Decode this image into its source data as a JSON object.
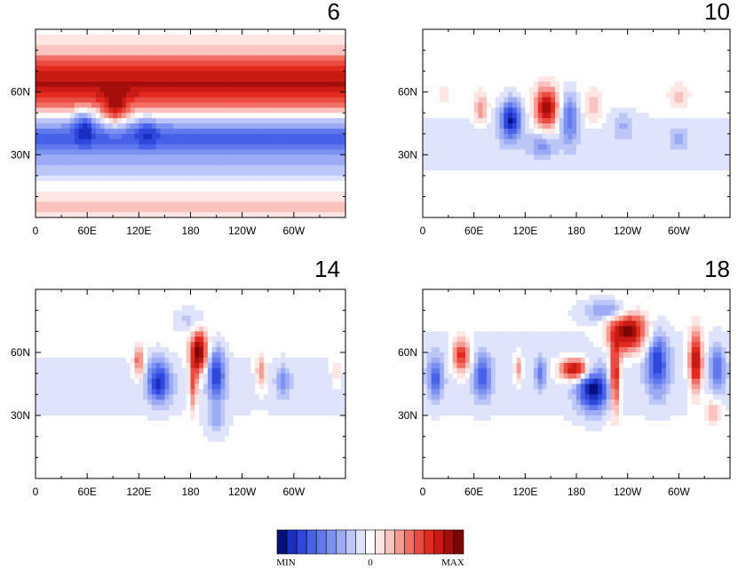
{
  "figure": {
    "description_type": "Four-panel shaded contour map sequence",
    "palette": [
      "#08107e",
      "#1a2ec2",
      "#2f47dc",
      "#4761e8",
      "#6179ec",
      "#7d92f0",
      "#9cabf3",
      "#bcc6f7",
      "#dfe3fb",
      "#ffffff",
      "#fde6e4",
      "#fac3bf",
      "#f59a92",
      "#f06e64",
      "#ea4b40",
      "#e22a20",
      "#c91b14",
      "#a40f0c",
      "#7b0606"
    ]
  },
  "chart_data": [
    {
      "type": "heatmap",
      "title": "6",
      "x": {
        "ticks": [
          "0",
          "60E",
          "120E",
          "180",
          "120W",
          "60W"
        ],
        "tick_values": [
          0,
          60,
          120,
          180,
          240,
          300
        ],
        "range": [
          0,
          360
        ]
      },
      "y": {
        "ticks": [
          "30N",
          "60N"
        ],
        "tick_values": [
          30,
          60
        ],
        "range": [
          0,
          90
        ]
      },
      "features": [
        {
          "kind": "band",
          "lat_center": 64,
          "lat_width": 14,
          "amp": 0.8
        },
        {
          "kind": "band",
          "lat_center": 38,
          "lat_width": 10,
          "amp": -0.65
        },
        {
          "kind": "band",
          "lat_center": 23,
          "lat_width": 6,
          "amp": -0.15
        },
        {
          "kind": "band",
          "lat_center": 5,
          "lat_width": 6,
          "amp": 0.2
        },
        {
          "kind": "blob",
          "lon": 93,
          "lat": 51,
          "amp": 0.5,
          "rx": 14,
          "ry": 8
        },
        {
          "kind": "blob",
          "lon": 56,
          "lat": 45,
          "amp": -0.45,
          "rx": 12,
          "ry": 8
        },
        {
          "kind": "blob",
          "lon": 130,
          "lat": 42,
          "amp": -0.25,
          "rx": 14,
          "ry": 8
        }
      ]
    },
    {
      "type": "heatmap",
      "title": "10",
      "x": {
        "ticks": [
          "0",
          "60E",
          "120E",
          "180",
          "120W",
          "60W"
        ],
        "tick_values": [
          0,
          60,
          120,
          180,
          240,
          300
        ],
        "range": [
          0,
          360
        ]
      },
      "y": {
        "ticks": [
          "30N",
          "60N"
        ],
        "tick_values": [
          30,
          60
        ],
        "range": [
          0,
          90
        ]
      },
      "features": [
        {
          "kind": "band",
          "lat_center": 36,
          "lat_width": 14,
          "amp": -0.12
        },
        {
          "kind": "blob",
          "lon": 145,
          "lat": 52,
          "amp": 0.9,
          "rx": 13,
          "ry": 10
        },
        {
          "kind": "blob",
          "lon": 103,
          "lat": 47,
          "amp": -0.85,
          "rx": 12,
          "ry": 9
        },
        {
          "kind": "blob",
          "lon": 68,
          "lat": 52,
          "amp": 0.4,
          "rx": 8,
          "ry": 7
        },
        {
          "kind": "blob",
          "lon": 172,
          "lat": 48,
          "amp": -0.5,
          "rx": 10,
          "ry": 12
        },
        {
          "kind": "blob",
          "lon": 140,
          "lat": 34,
          "amp": -0.3,
          "rx": 14,
          "ry": 6
        },
        {
          "kind": "blob",
          "lon": 200,
          "lat": 52,
          "amp": 0.25,
          "rx": 10,
          "ry": 8
        },
        {
          "kind": "blob",
          "lon": 235,
          "lat": 45,
          "amp": -0.2,
          "rx": 12,
          "ry": 6
        },
        {
          "kind": "blob",
          "lon": 300,
          "lat": 58,
          "amp": 0.2,
          "rx": 12,
          "ry": 6
        },
        {
          "kind": "blob",
          "lon": 300,
          "lat": 38,
          "amp": -0.2,
          "rx": 10,
          "ry": 5
        },
        {
          "kind": "blob",
          "lon": 25,
          "lat": 58,
          "amp": 0.15,
          "rx": 6,
          "ry": 4
        }
      ]
    },
    {
      "type": "heatmap",
      "title": "14",
      "x": {
        "ticks": [
          "0",
          "60E",
          "120E",
          "180",
          "120W",
          "60W"
        ],
        "tick_values": [
          0,
          60,
          120,
          180,
          240,
          300
        ],
        "range": [
          0,
          360
        ]
      },
      "y": {
        "ticks": [
          "30N",
          "60N"
        ],
        "tick_values": [
          30,
          60
        ],
        "range": [
          0,
          90
        ]
      },
      "features": [
        {
          "kind": "band",
          "lat_center": 44,
          "lat_width": 16,
          "amp": -0.1
        },
        {
          "kind": "blob",
          "lon": 190,
          "lat": 60,
          "amp": 1.0,
          "rx": 10,
          "ry": 10
        },
        {
          "kind": "blob",
          "lon": 183,
          "lat": 44,
          "amp": 0.55,
          "rx": 5,
          "ry": 12
        },
        {
          "kind": "blob",
          "lon": 143,
          "lat": 46,
          "amp": -0.75,
          "rx": 13,
          "ry": 10
        },
        {
          "kind": "blob",
          "lon": 210,
          "lat": 50,
          "amp": -0.7,
          "rx": 10,
          "ry": 12
        },
        {
          "kind": "blob",
          "lon": 120,
          "lat": 55,
          "amp": 0.55,
          "rx": 6,
          "ry": 7
        },
        {
          "kind": "blob",
          "lon": 262,
          "lat": 50,
          "amp": 0.45,
          "rx": 6,
          "ry": 8
        },
        {
          "kind": "blob",
          "lon": 288,
          "lat": 46,
          "amp": -0.35,
          "rx": 8,
          "ry": 7
        },
        {
          "kind": "blob",
          "lon": 350,
          "lat": 50,
          "amp": 0.3,
          "rx": 5,
          "ry": 5
        },
        {
          "kind": "blob",
          "lon": 210,
          "lat": 28,
          "amp": -0.25,
          "rx": 12,
          "ry": 8
        },
        {
          "kind": "blob",
          "lon": 180,
          "lat": 75,
          "amp": -0.2,
          "rx": 18,
          "ry": 6
        }
      ]
    },
    {
      "type": "heatmap",
      "title": "18",
      "x": {
        "ticks": [
          "0",
          "60E",
          "120E",
          "180",
          "120W",
          "60W"
        ],
        "tick_values": [
          0,
          60,
          120,
          180,
          240,
          300
        ],
        "range": [
          0,
          360
        ]
      },
      "y": {
        "ticks": [
          "30N",
          "60N"
        ],
        "tick_values": [
          30,
          60
        ],
        "range": [
          0,
          90
        ]
      },
      "features": [
        {
          "kind": "band",
          "lat_center": 50,
          "lat_width": 22,
          "amp": -0.12
        },
        {
          "kind": "blob",
          "lon": 240,
          "lat": 70,
          "amp": 1.0,
          "rx": 22,
          "ry": 10
        },
        {
          "kind": "blob",
          "lon": 178,
          "lat": 52,
          "amp": 1.0,
          "rx": 18,
          "ry": 5
        },
        {
          "kind": "blob",
          "lon": 225,
          "lat": 48,
          "amp": 0.9,
          "rx": 6,
          "ry": 16
        },
        {
          "kind": "blob",
          "lon": 320,
          "lat": 55,
          "amp": 0.95,
          "rx": 8,
          "ry": 14
        },
        {
          "kind": "blob",
          "lon": 45,
          "lat": 58,
          "amp": 0.75,
          "rx": 10,
          "ry": 8
        },
        {
          "kind": "blob",
          "lon": 200,
          "lat": 42,
          "amp": -0.9,
          "rx": 18,
          "ry": 10
        },
        {
          "kind": "blob",
          "lon": 275,
          "lat": 55,
          "amp": -0.7,
          "rx": 12,
          "ry": 14
        },
        {
          "kind": "blob",
          "lon": 70,
          "lat": 48,
          "amp": -0.6,
          "rx": 10,
          "ry": 10
        },
        {
          "kind": "blob",
          "lon": 15,
          "lat": 48,
          "amp": -0.55,
          "rx": 8,
          "ry": 10
        },
        {
          "kind": "blob",
          "lon": 112,
          "lat": 52,
          "amp": 0.45,
          "rx": 5,
          "ry": 6
        },
        {
          "kind": "blob",
          "lon": 138,
          "lat": 50,
          "amp": -0.4,
          "rx": 6,
          "ry": 7
        },
        {
          "kind": "blob",
          "lon": 345,
          "lat": 52,
          "amp": -0.5,
          "rx": 8,
          "ry": 10
        },
        {
          "kind": "blob",
          "lon": 220,
          "lat": 80,
          "amp": -0.45,
          "rx": 30,
          "ry": 5
        },
        {
          "kind": "blob",
          "lon": 340,
          "lat": 32,
          "amp": 0.3,
          "rx": 10,
          "ry": 6
        }
      ]
    }
  ],
  "colorbar": {
    "min_label": "MIN",
    "mid_label": "0",
    "max_label": "MAX"
  }
}
